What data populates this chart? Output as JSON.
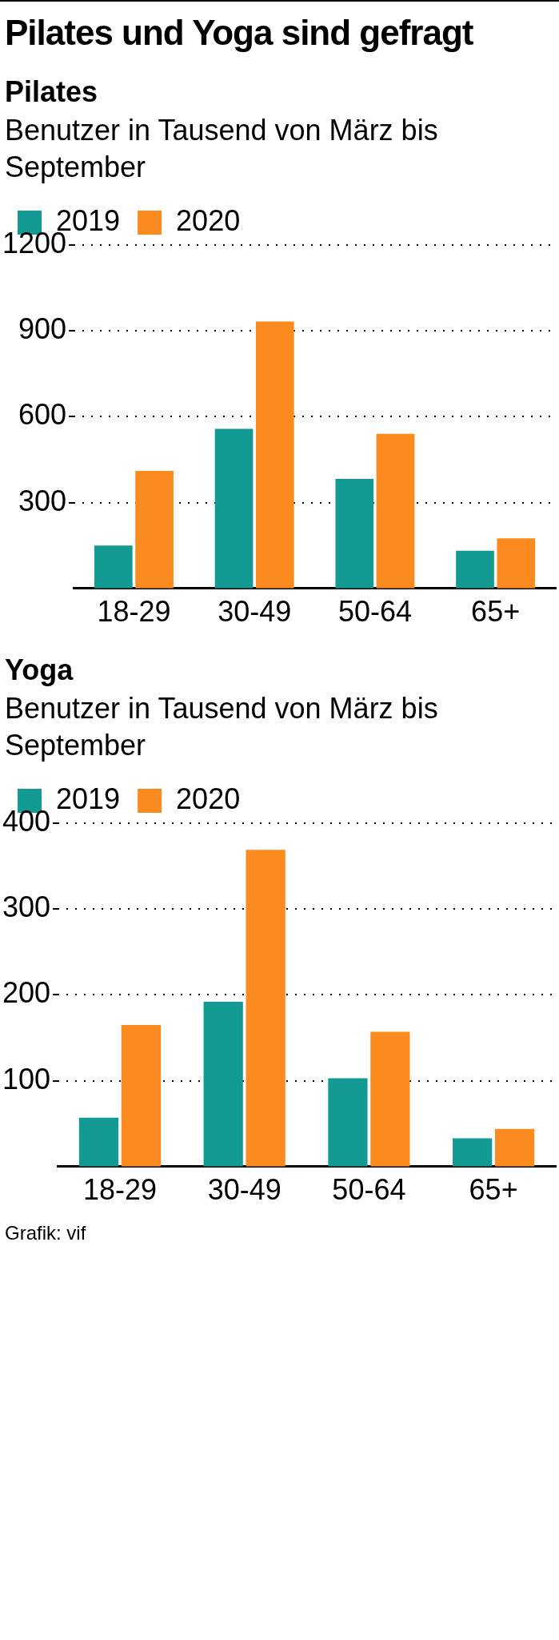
{
  "chart_data": [
    {
      "type": "other",
      "title": "Pilates und Yoga sind gefragt"
    },
    {
      "type": "bar",
      "title": "Pilates",
      "subtitle": "Benutzer in Tausend von März bis September",
      "categories": [
        "18-29",
        "30-49",
        "50-64",
        "65+"
      ],
      "series": [
        {
          "name": "2019",
          "color": "#139a93",
          "values": [
            150,
            558,
            383,
            132
          ]
        },
        {
          "name": "2020",
          "color": "#fb8b1e",
          "values": [
            411,
            933,
            540,
            175
          ]
        }
      ],
      "ylim": [
        0,
        1200
      ],
      "yticks": [
        300,
        600,
        900,
        1200
      ],
      "grid": "y",
      "legend": "top left"
    },
    {
      "type": "bar",
      "title": "Yoga",
      "subtitle": "Benutzer in Tausend von März bis September",
      "categories": [
        "18-29",
        "30-49",
        "50-64",
        "65+"
      ],
      "series": [
        {
          "name": "2019",
          "color": "#139a93",
          "values": [
            57,
            192,
            103,
            33
          ]
        },
        {
          "name": "2020",
          "color": "#fb8b1e",
          "values": [
            165,
            369,
            157,
            44
          ]
        }
      ],
      "ylim": [
        0,
        400
      ],
      "yticks": [
        100,
        200,
        300,
        400
      ],
      "grid": "y",
      "legend": "top left",
      "annotations": [
        "Grafik: vif"
      ]
    }
  ]
}
